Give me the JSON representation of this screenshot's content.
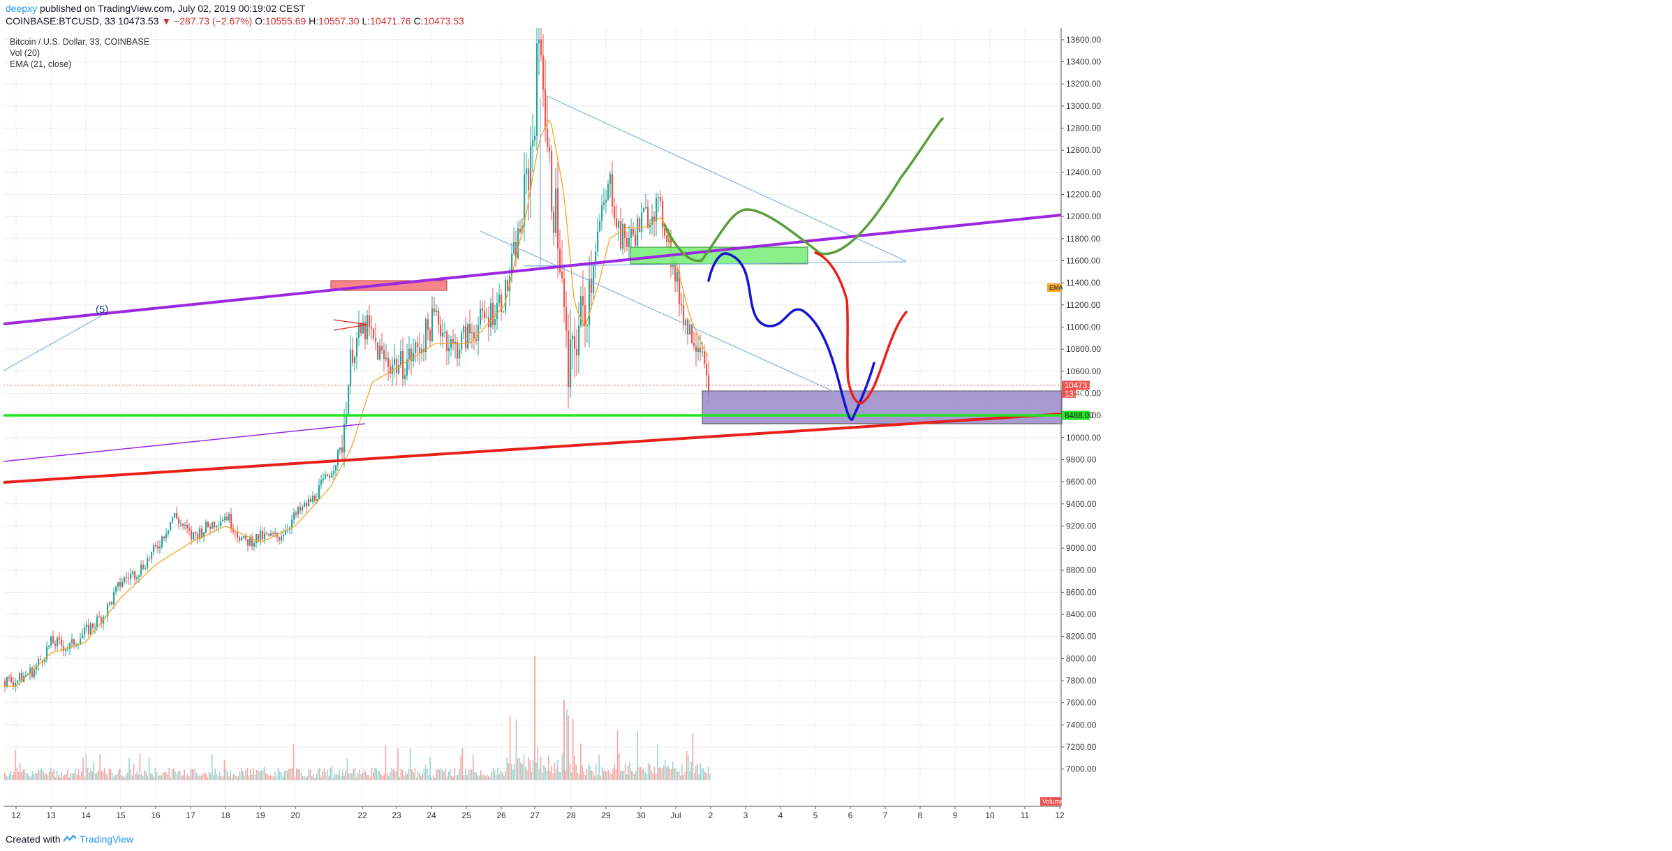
{
  "header": {
    "author": "deepxy",
    "published_text": " published on TradingView.com, July 02, 2019 00:19:02 CEST",
    "symbol": "COINBASE:BTCUSD, 33",
    "last": "10473.53",
    "change": "−287.73 (−2.67%)",
    "o_label": "O:",
    "o_value": "10555.69",
    "h_label": "H:",
    "h_value": "10557.30",
    "l_label": "L:",
    "l_value": "10471.76",
    "c_label": "C:",
    "c_value": "10473.53"
  },
  "legend": {
    "title": "Bitcoin / U.S. Dollar, 33, COINBASE",
    "vol": "Vol (20)",
    "ema": "EMA (21, close)"
  },
  "footer": {
    "created_with": "Created with",
    "brand": "TradingView"
  },
  "colors": {
    "up": "#26a69a",
    "down": "#ef5350",
    "ema": "#f5a623",
    "purple_line": "#9c27e0",
    "red_line": "#e8201a",
    "green_line": "#22e622",
    "blue_path": "#1414d2",
    "green_path": "#5a9e3a",
    "red_path": "#e8201a",
    "trend_line": "#7fb3e0",
    "purple_box": "#9a8ac8",
    "green_box": "#7df07d",
    "red_box": "#f4777f"
  },
  "chart_data": {
    "type": "candlestick",
    "symbol": "COINBASE:BTCUSD",
    "interval": "33",
    "ylim": [
      6900,
      13950
    ],
    "y_ticks": [
      "13800.00",
      "13600.00",
      "13400.00",
      "13200.00",
      "13000.00",
      "12800.00",
      "12600.00",
      "12400.00",
      "12200.00",
      "12000.00",
      "11800.00",
      "11600.00",
      "11400.00",
      "11200.00",
      "11000.00",
      "10800.00",
      "10600.00",
      "10400.00",
      "10200.00",
      "10000.00",
      "9800.00",
      "9600.00",
      "9400.00",
      "9200.00",
      "9000.00",
      "8800.00",
      "8600.00",
      "8400.00",
      "8200.00",
      "8000.00",
      "7800.00",
      "7600.00",
      "7400.00",
      "7200.00",
      "7000.00"
    ],
    "x_ticks": [
      "12",
      "13",
      "14",
      "15",
      "16",
      "17",
      "18",
      "19",
      "20",
      "22",
      "23",
      "24",
      "25",
      "26",
      "27",
      "28",
      "29",
      "30",
      "Jul",
      "2",
      "3",
      "4",
      "5",
      "6",
      "7",
      "8",
      "9",
      "10",
      "11",
      "12"
    ],
    "price_path": [
      [
        0.0,
        7800
      ],
      [
        0.5,
        7900
      ],
      [
        1.0,
        8150
      ],
      [
        1.5,
        8100
      ],
      [
        2.0,
        8250
      ],
      [
        2.5,
        8400
      ],
      [
        3.0,
        8700
      ],
      [
        3.5,
        8800
      ],
      [
        4.0,
        9000
      ],
      [
        4.5,
        9300
      ],
      [
        5.0,
        9100
      ],
      [
        5.5,
        9200
      ],
      [
        6.0,
        9300
      ],
      [
        6.5,
        9050
      ],
      [
        7.0,
        9100
      ],
      [
        7.5,
        9100
      ],
      [
        8.0,
        9300
      ],
      [
        8.5,
        9450
      ],
      [
        9.0,
        9700
      ],
      [
        9.3,
        9900
      ],
      [
        9.6,
        10800
      ],
      [
        10.0,
        11000
      ],
      [
        10.5,
        10700
      ],
      [
        11.0,
        10650
      ],
      [
        11.5,
        10800
      ],
      [
        12.0,
        11100
      ],
      [
        12.5,
        10800
      ],
      [
        13.0,
        10950
      ],
      [
        13.5,
        11100
      ],
      [
        14.0,
        11300
      ],
      [
        14.5,
        12000
      ],
      [
        14.8,
        12800
      ],
      [
        15.0,
        13800
      ],
      [
        15.2,
        12500
      ],
      [
        15.5,
        11900
      ],
      [
        15.8,
        10500
      ],
      [
        16.0,
        10900
      ],
      [
        16.3,
        11200
      ],
      [
        16.6,
        11800
      ],
      [
        17.0,
        12300
      ],
      [
        17.3,
        11800
      ],
      [
        17.6,
        11800
      ],
      [
        18.0,
        12000
      ],
      [
        18.3,
        12100
      ],
      [
        18.6,
        11900
      ],
      [
        18.9,
        11400
      ],
      [
        19.2,
        11000
      ],
      [
        19.5,
        10900
      ],
      [
        19.7,
        10800
      ],
      [
        19.8,
        10300
      ],
      [
        19.95,
        10100
      ],
      [
        20.0,
        10473.53
      ]
    ],
    "ema_path": [
      [
        0.0,
        7750
      ],
      [
        1.0,
        8050
      ],
      [
        2.0,
        8150
      ],
      [
        3.0,
        8550
      ],
      [
        4.0,
        8850
      ],
      [
        5.0,
        9050
      ],
      [
        6.0,
        9200
      ],
      [
        7.0,
        9050
      ],
      [
        8.0,
        9200
      ],
      [
        9.0,
        9550
      ],
      [
        9.6,
        9900
      ],
      [
        10.2,
        10500
      ],
      [
        11.0,
        10650
      ],
      [
        12.0,
        10850
      ],
      [
        13.0,
        10850
      ],
      [
        14.0,
        11200
      ],
      [
        14.6,
        12000
      ],
      [
        15.0,
        12700
      ],
      [
        15.3,
        12900
      ],
      [
        15.7,
        12200
      ],
      [
        16.0,
        11200
      ],
      [
        16.3,
        11000
      ],
      [
        16.7,
        11400
      ],
      [
        17.0,
        11800
      ],
      [
        17.5,
        11900
      ],
      [
        18.0,
        11900
      ],
      [
        18.5,
        12000
      ],
      [
        18.9,
        11600
      ],
      [
        19.3,
        11100
      ],
      [
        19.7,
        10800
      ],
      [
        20.0,
        10650
      ]
    ],
    "current_price": "10473.53",
    "countdown": "13:59",
    "horizontal_level": "8488.00",
    "ema_tag": "EMA",
    "volume_tag": "Volume",
    "wave_label": "(5)"
  }
}
